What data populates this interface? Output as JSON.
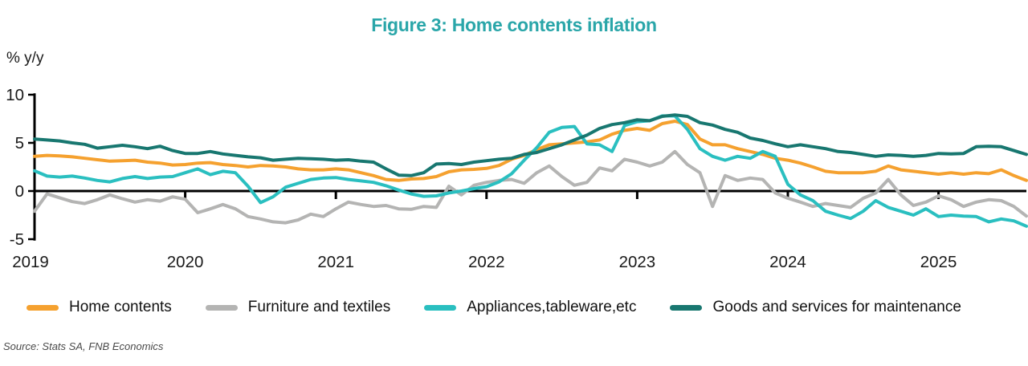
{
  "title": "Figure 3: Home contents inflation",
  "title_color": "#2AA6A9",
  "y_axis_unit": "% y/y",
  "source": "Source: Stats SA, FNB Economics",
  "chart_data": {
    "type": "line",
    "title": "Figure 3: Home contents inflation",
    "ylabel": "% y/y",
    "ylim": [
      -5,
      10
    ],
    "y_ticks": [
      10,
      5,
      0,
      -5
    ],
    "x_tick_labels": [
      "2019",
      "2020",
      "2021",
      "2022",
      "2023",
      "2024",
      "2025"
    ],
    "points_per_year": 12,
    "grid": false,
    "legend_position": "bottom",
    "axis_color": "#000000",
    "tick_label_color": "#1a1a1a",
    "series": [
      {
        "id": "home-contents",
        "name": "Home contents",
        "color": "#F5A12F",
        "values": [
          3.6,
          3.7,
          3.65,
          3.55,
          3.4,
          3.25,
          3.1,
          3.15,
          3.2,
          3.0,
          2.9,
          2.7,
          2.75,
          2.9,
          2.95,
          2.75,
          2.65,
          2.5,
          2.65,
          2.6,
          2.5,
          2.3,
          2.2,
          2.2,
          2.3,
          2.2,
          1.9,
          1.6,
          1.2,
          1.1,
          1.25,
          1.3,
          1.5,
          2.0,
          2.2,
          2.25,
          2.35,
          2.65,
          3.3,
          3.7,
          4.3,
          4.8,
          4.9,
          5.0,
          5.1,
          5.3,
          5.9,
          6.3,
          6.5,
          6.3,
          7.0,
          7.25,
          6.9,
          5.4,
          4.8,
          4.8,
          4.4,
          4.1,
          3.8,
          3.4,
          3.2,
          2.9,
          2.5,
          2.05,
          1.9,
          1.9,
          1.9,
          2.05,
          2.6,
          2.2,
          2.05,
          1.9,
          1.75,
          1.9,
          1.75,
          1.9,
          1.8,
          2.2,
          1.6,
          1.1
        ]
      },
      {
        "id": "furniture-and-textiles",
        "name": "Furniture and textiles",
        "color": "#B4B4B3",
        "values": [
          -2.1,
          -0.3,
          -0.7,
          -1.1,
          -1.3,
          -0.9,
          -0.4,
          -0.8,
          -1.15,
          -0.9,
          -1.05,
          -0.6,
          -0.85,
          -2.25,
          -1.85,
          -1.4,
          -1.85,
          -2.65,
          -2.9,
          -3.2,
          -3.3,
          -3.0,
          -2.4,
          -2.65,
          -1.85,
          -1.15,
          -1.4,
          -1.6,
          -1.5,
          -1.85,
          -1.9,
          -1.6,
          -1.7,
          0.5,
          -0.4,
          0.6,
          0.9,
          1.1,
          1.2,
          0.8,
          1.9,
          2.6,
          1.5,
          0.6,
          0.9,
          2.4,
          2.1,
          3.3,
          3.0,
          2.6,
          3.0,
          4.1,
          2.75,
          1.9,
          -1.6,
          1.6,
          1.1,
          1.35,
          1.2,
          -0.2,
          -0.75,
          -1.15,
          -1.6,
          -1.3,
          -1.5,
          -1.7,
          -0.75,
          -0.2,
          1.2,
          -0.4,
          -1.5,
          -1.15,
          -0.5,
          -0.9,
          -1.6,
          -1.15,
          -0.9,
          -1.0,
          -1.6,
          -2.6
        ]
      },
      {
        "id": "appliances-tableware",
        "name": "Appliances,tableware,etc",
        "color": "#2ABFC0",
        "values": [
          2.1,
          1.55,
          1.45,
          1.55,
          1.35,
          1.1,
          0.95,
          1.3,
          1.5,
          1.3,
          1.45,
          1.5,
          1.9,
          2.3,
          1.7,
          2.05,
          1.9,
          0.5,
          -1.2,
          -0.6,
          0.4,
          0.8,
          1.2,
          1.35,
          1.4,
          1.2,
          1.05,
          0.9,
          0.55,
          0.1,
          -0.3,
          -0.55,
          -0.5,
          -0.2,
          0.0,
          0.25,
          0.45,
          0.95,
          1.8,
          3.2,
          4.5,
          6.1,
          6.6,
          6.7,
          4.9,
          4.8,
          4.1,
          6.8,
          7.2,
          7.3,
          7.8,
          7.8,
          6.4,
          4.4,
          3.6,
          3.2,
          3.6,
          3.4,
          4.1,
          3.6,
          0.7,
          -0.4,
          -1.0,
          -2.1,
          -2.5,
          -2.85,
          -2.1,
          -1.0,
          -1.7,
          -2.1,
          -2.5,
          -1.85,
          -2.65,
          -2.5,
          -2.6,
          -2.65,
          -3.2,
          -2.9,
          -3.1,
          -3.65
        ]
      },
      {
        "id": "goods-services-maintenance",
        "name": "Goods and services for maintenance",
        "color": "#187770",
        "values": [
          5.4,
          5.3,
          5.2,
          5.0,
          4.85,
          4.45,
          4.6,
          4.75,
          4.6,
          4.4,
          4.65,
          4.2,
          3.9,
          3.9,
          4.1,
          3.85,
          3.7,
          3.55,
          3.45,
          3.2,
          3.3,
          3.4,
          3.35,
          3.3,
          3.2,
          3.25,
          3.1,
          3.0,
          2.3,
          1.65,
          1.6,
          1.9,
          2.8,
          2.85,
          2.75,
          3.0,
          3.15,
          3.3,
          3.4,
          3.8,
          4.0,
          4.4,
          4.8,
          5.3,
          5.8,
          6.5,
          6.9,
          7.1,
          7.4,
          7.3,
          7.75,
          7.9,
          7.75,
          7.1,
          6.85,
          6.4,
          6.1,
          5.5,
          5.25,
          4.9,
          4.6,
          4.8,
          4.6,
          4.4,
          4.1,
          4.0,
          3.8,
          3.6,
          3.75,
          3.7,
          3.6,
          3.7,
          3.9,
          3.85,
          3.9,
          4.6,
          4.65,
          4.6,
          4.2,
          3.8
        ]
      }
    ]
  }
}
